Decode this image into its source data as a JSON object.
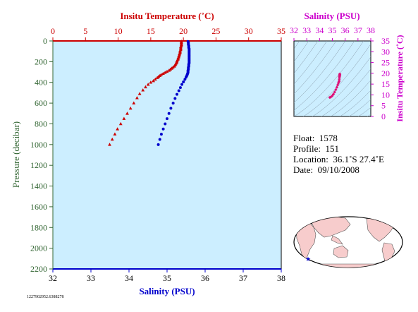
{
  "chart_data": [
    {
      "type": "scatter",
      "name": "profile",
      "top_axis": {
        "title": "Insitu Temperature (˚C)",
        "range": [
          0,
          35
        ],
        "ticks": [
          0,
          5,
          10,
          15,
          20,
          25,
          30,
          35
        ],
        "color": "#cc0000"
      },
      "bottom_axis": {
        "title": "Salinity (PSU)",
        "range": [
          32,
          38
        ],
        "ticks": [
          32,
          33,
          34,
          35,
          36,
          37,
          38
        ],
        "color": "#0000cc"
      },
      "left_axis": {
        "title": "Pressure (decibar)",
        "range": [
          0,
          2200
        ],
        "inverted": true,
        "ticks": [
          0,
          200,
          400,
          600,
          800,
          1000,
          1200,
          1400,
          1600,
          1800,
          2000,
          2200
        ],
        "color": "#336633"
      },
      "grid": false,
      "background": "#cceeff",
      "series": [
        {
          "quantity": "temperature",
          "axis": "top",
          "marker": "triangle",
          "color": "#cc0000",
          "points": [
            [
              19.7,
              5
            ],
            [
              19.7,
              15
            ],
            [
              19.7,
              25
            ],
            [
              19.7,
              35
            ],
            [
              19.7,
              45
            ],
            [
              19.6,
              55
            ],
            [
              19.6,
              65
            ],
            [
              19.6,
              75
            ],
            [
              19.6,
              85
            ],
            [
              19.5,
              95
            ],
            [
              19.5,
              105
            ],
            [
              19.5,
              115
            ],
            [
              19.4,
              125
            ],
            [
              19.4,
              135
            ],
            [
              19.3,
              145
            ],
            [
              19.3,
              155
            ],
            [
              19.2,
              165
            ],
            [
              19.2,
              175
            ],
            [
              19.1,
              185
            ],
            [
              19.0,
              195
            ],
            [
              19.0,
              205
            ],
            [
              18.9,
              215
            ],
            [
              18.8,
              225
            ],
            [
              18.7,
              235
            ],
            [
              18.6,
              245
            ],
            [
              18.4,
              255
            ],
            [
              18.2,
              265
            ],
            [
              18.0,
              275
            ],
            [
              17.8,
              285
            ],
            [
              17.5,
              295
            ],
            [
              17.2,
              305
            ],
            [
              16.9,
              315
            ],
            [
              16.6,
              325
            ],
            [
              16.4,
              335
            ],
            [
              16.2,
              345
            ],
            [
              16.0,
              355
            ],
            [
              15.7,
              370
            ],
            [
              15.4,
              385
            ],
            [
              15.0,
              400
            ],
            [
              14.6,
              420
            ],
            [
              14.2,
              445
            ],
            [
              13.8,
              475
            ],
            [
              13.3,
              510
            ],
            [
              12.9,
              550
            ],
            [
              12.4,
              600
            ],
            [
              11.9,
              650
            ],
            [
              11.4,
              700
            ],
            [
              10.9,
              750
            ],
            [
              10.4,
              800
            ],
            [
              9.9,
              850
            ],
            [
              9.5,
              900
            ],
            [
              9.1,
              950
            ],
            [
              8.7,
              1000
            ]
          ]
        },
        {
          "quantity": "salinity",
          "axis": "bottom",
          "marker": "circle",
          "color": "#0000cc",
          "points": [
            [
              35.55,
              5
            ],
            [
              35.56,
              15
            ],
            [
              35.56,
              25
            ],
            [
              35.56,
              35
            ],
            [
              35.57,
              45
            ],
            [
              35.57,
              55
            ],
            [
              35.57,
              65
            ],
            [
              35.58,
              75
            ],
            [
              35.58,
              85
            ],
            [
              35.58,
              95
            ],
            [
              35.58,
              105
            ],
            [
              35.58,
              115
            ],
            [
              35.58,
              125
            ],
            [
              35.58,
              135
            ],
            [
              35.58,
              145
            ],
            [
              35.58,
              155
            ],
            [
              35.58,
              165
            ],
            [
              35.58,
              175
            ],
            [
              35.58,
              185
            ],
            [
              35.58,
              195
            ],
            [
              35.58,
              205
            ],
            [
              35.58,
              215
            ],
            [
              35.57,
              225
            ],
            [
              35.57,
              235
            ],
            [
              35.57,
              245
            ],
            [
              35.56,
              255
            ],
            [
              35.56,
              265
            ],
            [
              35.56,
              275
            ],
            [
              35.55,
              285
            ],
            [
              35.55,
              295
            ],
            [
              35.55,
              305
            ],
            [
              35.54,
              315
            ],
            [
              35.53,
              325
            ],
            [
              35.52,
              335
            ],
            [
              35.5,
              350
            ],
            [
              35.47,
              370
            ],
            [
              35.43,
              395
            ],
            [
              35.39,
              420
            ],
            [
              35.35,
              450
            ],
            [
              35.31,
              480
            ],
            [
              35.26,
              515
            ],
            [
              35.21,
              555
            ],
            [
              35.16,
              600
            ],
            [
              35.1,
              650
            ],
            [
              35.05,
              700
            ],
            [
              35.0,
              750
            ],
            [
              34.95,
              800
            ],
            [
              34.9,
              850
            ],
            [
              34.85,
              900
            ],
            [
              34.81,
              950
            ],
            [
              34.77,
              1000
            ]
          ]
        }
      ]
    },
    {
      "type": "scatter",
      "name": "t-s-diagram",
      "top_axis": {
        "title": "Salinity (PSU)",
        "range": [
          32,
          38
        ],
        "ticks": [
          32,
          33,
          34,
          35,
          36,
          37,
          38
        ],
        "color": "#cc00cc"
      },
      "right_axis": {
        "title": "Insitu Temperature (˚C)",
        "range": [
          0,
          35
        ],
        "ticks": [
          0,
          5,
          10,
          15,
          20,
          25,
          30,
          35
        ],
        "color": "#cc00cc"
      },
      "background": "#cceeff",
      "density_contours": true,
      "series": [
        {
          "marker": "diamond",
          "color": "#dd1177",
          "points": [
            [
              35.58,
              19.7
            ],
            [
              35.58,
              19.5
            ],
            [
              35.58,
              19.2
            ],
            [
              35.57,
              18.9
            ],
            [
              35.56,
              18.4
            ],
            [
              35.55,
              17.8
            ],
            [
              35.54,
              17.0
            ],
            [
              35.52,
              16.2
            ],
            [
              35.47,
              15.5
            ],
            [
              35.42,
              14.6
            ],
            [
              35.35,
              13.5
            ],
            [
              35.27,
              12.4
            ],
            [
              35.18,
              11.3
            ],
            [
              35.08,
              10.3
            ],
            [
              34.98,
              9.5
            ],
            [
              34.88,
              9.0
            ],
            [
              34.8,
              8.8
            ]
          ]
        }
      ]
    }
  ],
  "info": {
    "float_label": "Float:",
    "float_value": "1578",
    "profile_label": "Profile:",
    "profile_value": "151",
    "location_label": "Location:",
    "location_value": "36.1˚S  27.4˚E",
    "date_label": "Date:",
    "date_value": "09/10/2008"
  },
  "map": {
    "marker_color": "#0000cc",
    "land_color": "#f7cccc",
    "ocean_color": "#ffffff"
  },
  "footnote": "1227902952.6388278"
}
